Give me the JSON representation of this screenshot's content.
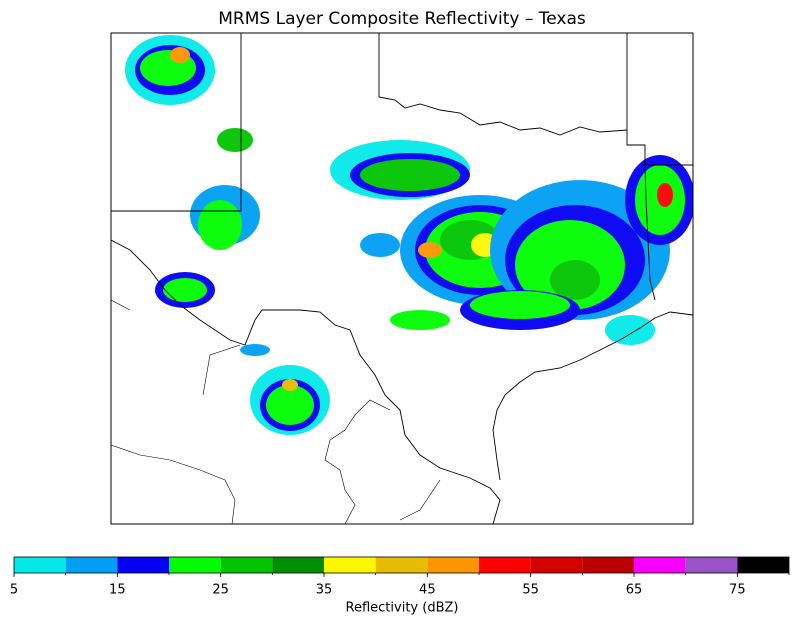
{
  "title": "MRMS Layer Composite Reflectivity – Texas",
  "colorbar": {
    "label": "Reflectivity (dBZ)",
    "bounds": [
      5,
      10,
      15,
      20,
      25,
      30,
      35,
      40,
      45,
      50,
      55,
      60,
      65,
      70,
      75,
      80
    ],
    "colors": [
      "#04e9e7",
      "#019ff4",
      "#0300f4",
      "#02fd02",
      "#01c501",
      "#008e00",
      "#fdf802",
      "#e5bc00",
      "#fd9500",
      "#fd0000",
      "#d40000",
      "#bc0000",
      "#f800fd",
      "#9854c6",
      "#000000"
    ],
    "ticks": [
      5,
      15,
      25,
      35,
      45,
      55,
      65,
      75
    ]
  }
}
